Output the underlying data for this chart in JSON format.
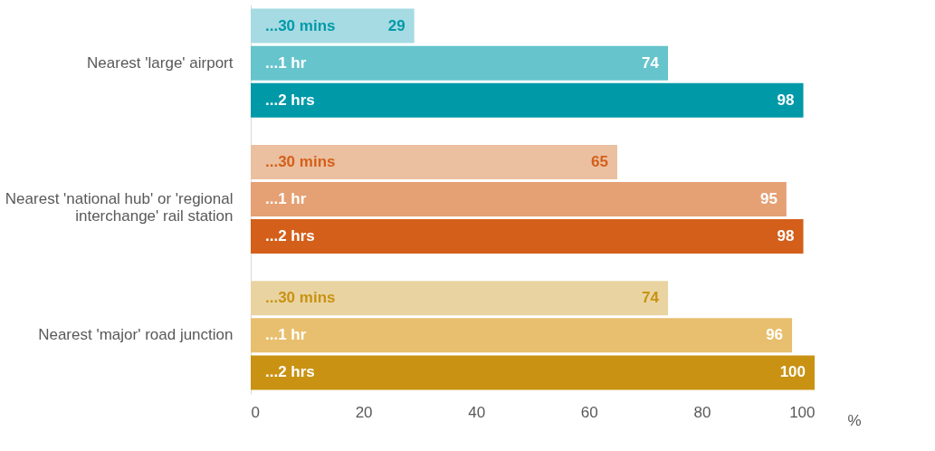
{
  "chart_data": {
    "type": "bar",
    "orientation": "horizontal",
    "categories": [
      "Nearest 'large' airport",
      "Nearest 'national hub' or 'regional\ninterchange' rail station",
      "Nearest 'major' road junction"
    ],
    "series": [
      {
        "name": "...30 mins",
        "colors": [
          "#a6dbe3",
          "#ebc0a0",
          "#e9d4a1"
        ],
        "values": [
          29,
          65,
          74
        ]
      },
      {
        "name": "...1 hr",
        "colors": [
          "#66c4cc",
          "#e5a074",
          "#e8bf6e"
        ],
        "values": [
          74,
          95,
          96
        ]
      },
      {
        "name": "...2 hrs",
        "colors": [
          "#0099a8",
          "#d45f1a",
          "#c99213"
        ],
        "values": [
          98,
          98,
          100
        ]
      }
    ],
    "xlim": [
      0,
      100
    ],
    "xticks": [
      0,
      20,
      40,
      60,
      80,
      100
    ],
    "xlabel": "%",
    "data_labels": true,
    "grid": false
  }
}
